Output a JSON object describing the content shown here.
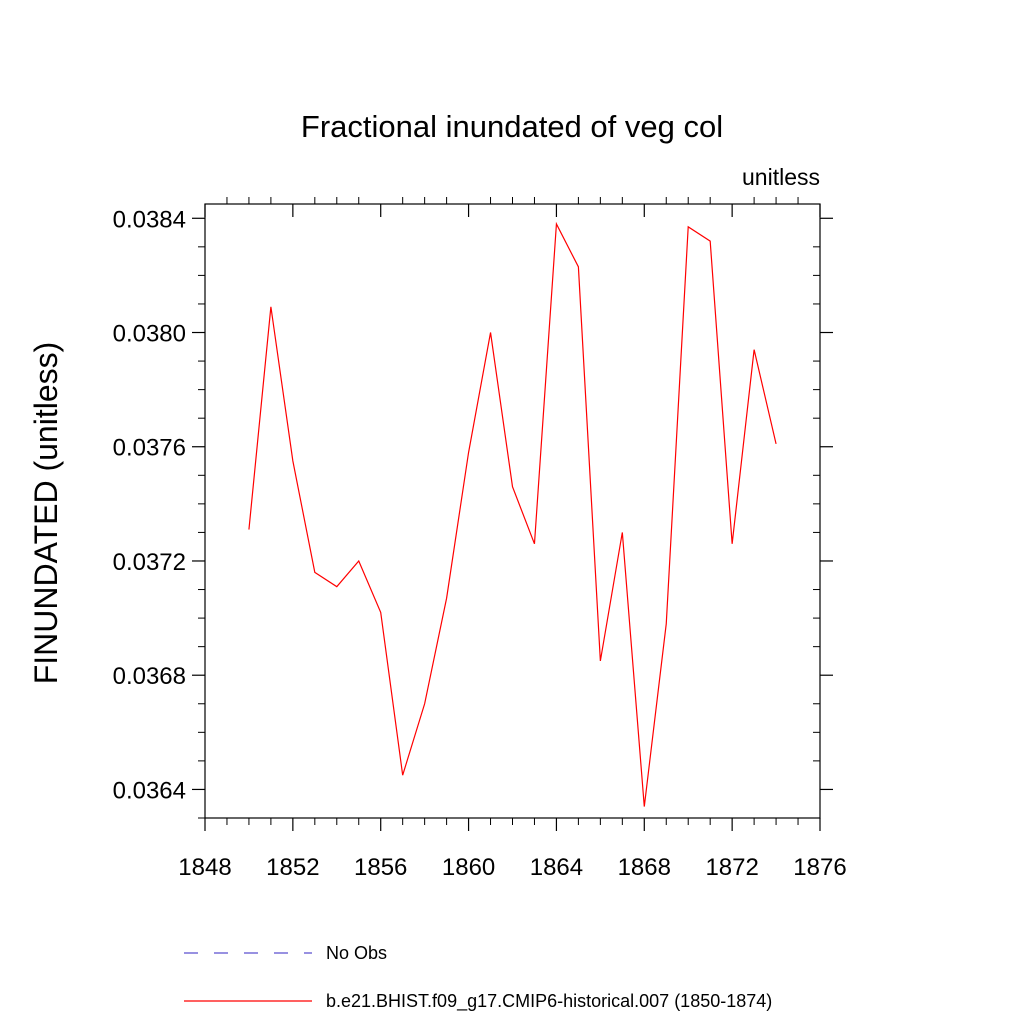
{
  "chart_data": {
    "type": "line",
    "title": "Fractional inundated of veg col",
    "units_label": "unitless",
    "xlabel": "",
    "ylabel": "FINUNDATED  (unitless)",
    "xlim": [
      1848,
      1876
    ],
    "ylim": [
      0.0363,
      0.03845
    ],
    "x_ticks": [
      1848,
      1852,
      1856,
      1860,
      1864,
      1868,
      1872,
      1876
    ],
    "x_tick_labels": [
      "1848",
      "1852",
      "1856",
      "1860",
      "1864",
      "1868",
      "1872",
      "1876"
    ],
    "x_minor_step": 1,
    "y_ticks": [
      0.0364,
      0.0368,
      0.0372,
      0.0376,
      0.038,
      0.0384
    ],
    "y_tick_labels": [
      "0.0364",
      "0.0368",
      "0.0372",
      "0.0376",
      "0.0380",
      "0.0384"
    ],
    "y_minor_step": 0.0001,
    "grid": false,
    "legend_position": "bottom",
    "series": [
      {
        "name": "No Obs",
        "color": "#5a4fcf",
        "dashed": true,
        "x": [],
        "y": []
      },
      {
        "name": "b.e21.BHIST.f09_g17.CMIP6-historical.007 (1850-1874)",
        "color": "#ff0000",
        "dashed": false,
        "x": [
          1850,
          1851,
          1852,
          1853,
          1854,
          1855,
          1856,
          1857,
          1858,
          1859,
          1860,
          1861,
          1862,
          1863,
          1864,
          1865,
          1866,
          1867,
          1868,
          1869,
          1870,
          1871,
          1872,
          1873,
          1874
        ],
        "y": [
          0.03731,
          0.03809,
          0.03755,
          0.03716,
          0.03711,
          0.0372,
          0.03702,
          0.03645,
          0.0367,
          0.03707,
          0.03758,
          0.038,
          0.03746,
          0.03726,
          0.03838,
          0.03823,
          0.03685,
          0.0373,
          0.03634,
          0.03698,
          0.03837,
          0.03832,
          0.03726,
          0.03794,
          0.03761
        ]
      }
    ]
  }
}
